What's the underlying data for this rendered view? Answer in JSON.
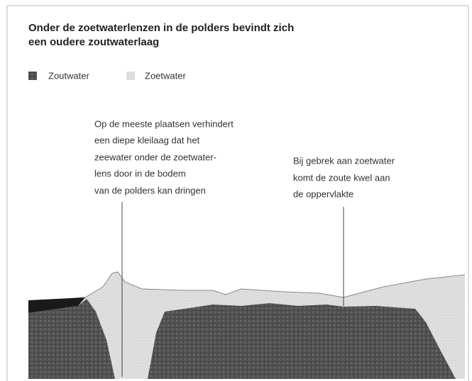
{
  "title": [
    "Onder de zoetwaterlenzen in de polders bevindt zich",
    "een oudere zoutwaterlaag"
  ],
  "legend": [
    "Zoutwater",
    "Zoetwater"
  ],
  "annotations": [
    [
      "Op de meeste plaatsen verhindert",
      "een diepe kleilaag dat het",
      "zeewater onder de zoetwater-",
      "lens door in de bodem",
      "van de polders kan dringen"
    ],
    [
      "Bij gebrek aan zoetwater",
      "komt de zoute kwel aan",
      "de oppervlakte"
    ]
  ]
}
